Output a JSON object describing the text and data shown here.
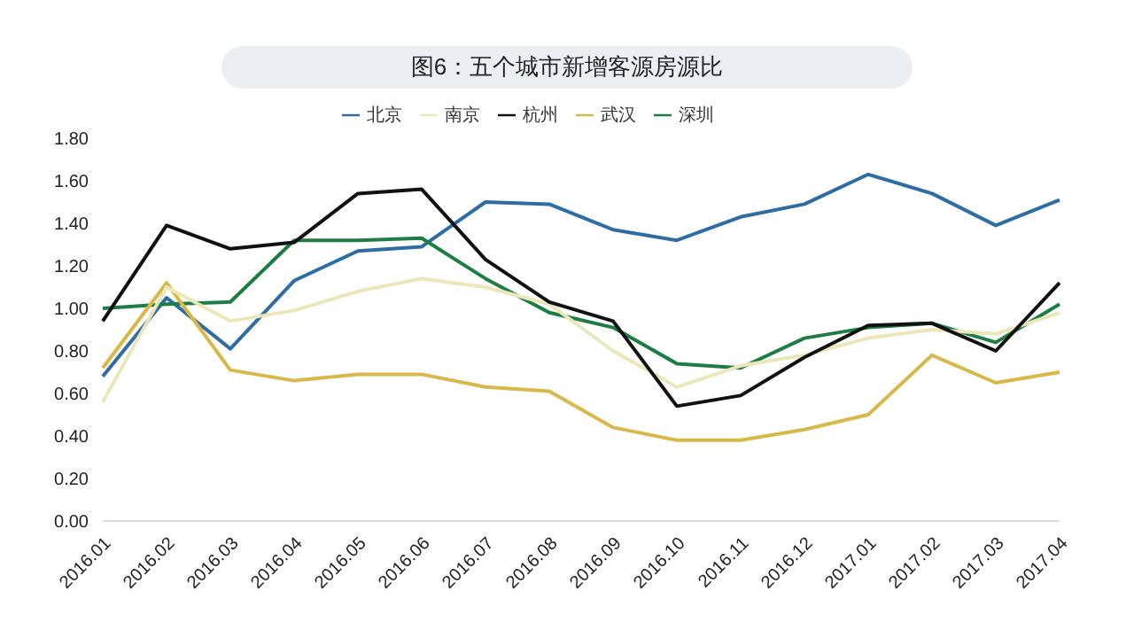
{
  "chart_data": {
    "type": "line",
    "title": "图6：五个城市新增客源房源比",
    "categories": [
      "2016.01",
      "2016.02",
      "2016.03",
      "2016.04",
      "2016.05",
      "2016.06",
      "2016.07",
      "2016.08",
      "2016.09",
      "2016.10",
      "2016.11",
      "2016.12",
      "2017.01",
      "2017.02",
      "2017.03",
      "2017.04"
    ],
    "series": [
      {
        "name": "北京",
        "color": "#2e6da4",
        "values": [
          0.68,
          1.05,
          0.81,
          1.13,
          1.27,
          1.29,
          1.5,
          1.49,
          1.37,
          1.32,
          1.43,
          1.49,
          1.63,
          1.54,
          1.39,
          1.51
        ]
      },
      {
        "name": "深圳",
        "color": "#1e7d45",
        "values": [
          1.0,
          1.02,
          1.03,
          1.32,
          1.32,
          1.33,
          1.14,
          0.98,
          0.91,
          0.74,
          0.72,
          0.86,
          0.91,
          0.93,
          0.84,
          1.02
        ]
      },
      {
        "name": "武汉",
        "color": "#d9b84a",
        "values": [
          0.72,
          1.12,
          0.71,
          0.66,
          0.69,
          0.69,
          0.63,
          0.61,
          0.44,
          0.38,
          0.38,
          0.43,
          0.5,
          0.78,
          0.65,
          0.7
        ]
      },
      {
        "name": "南京",
        "color": "#ece7b8",
        "values": [
          0.56,
          1.1,
          0.94,
          0.99,
          1.08,
          1.14,
          1.1,
          1.02,
          0.8,
          0.63,
          0.73,
          0.78,
          0.86,
          0.9,
          0.88,
          0.98
        ]
      },
      {
        "name": "杭州",
        "color": "#111111",
        "values": [
          0.94,
          1.39,
          1.28,
          1.31,
          1.54,
          1.56,
          1.23,
          1.03,
          0.94,
          0.54,
          0.59,
          0.77,
          0.92,
          0.93,
          0.8,
          1.12
        ]
      }
    ],
    "ylim": [
      0,
      1.8
    ],
    "yticks": [
      {
        "value": 0,
        "label": "0.00"
      },
      {
        "value": 0.2,
        "label": "0.20"
      },
      {
        "value": 0.4,
        "label": "0.40"
      },
      {
        "value": 0.6,
        "label": "0.60"
      },
      {
        "value": 0.8,
        "label": "0.80"
      },
      {
        "value": 1,
        "label": "1.00"
      },
      {
        "value": 1.2,
        "label": "1.20"
      },
      {
        "value": 1.4,
        "label": "1.40"
      },
      {
        "value": 1.6,
        "label": "1.60"
      },
      {
        "value": 1.8,
        "label": "1.80"
      }
    ],
    "grid": false,
    "legend": "top",
    "marker": "none",
    "line_style": "solid"
  }
}
